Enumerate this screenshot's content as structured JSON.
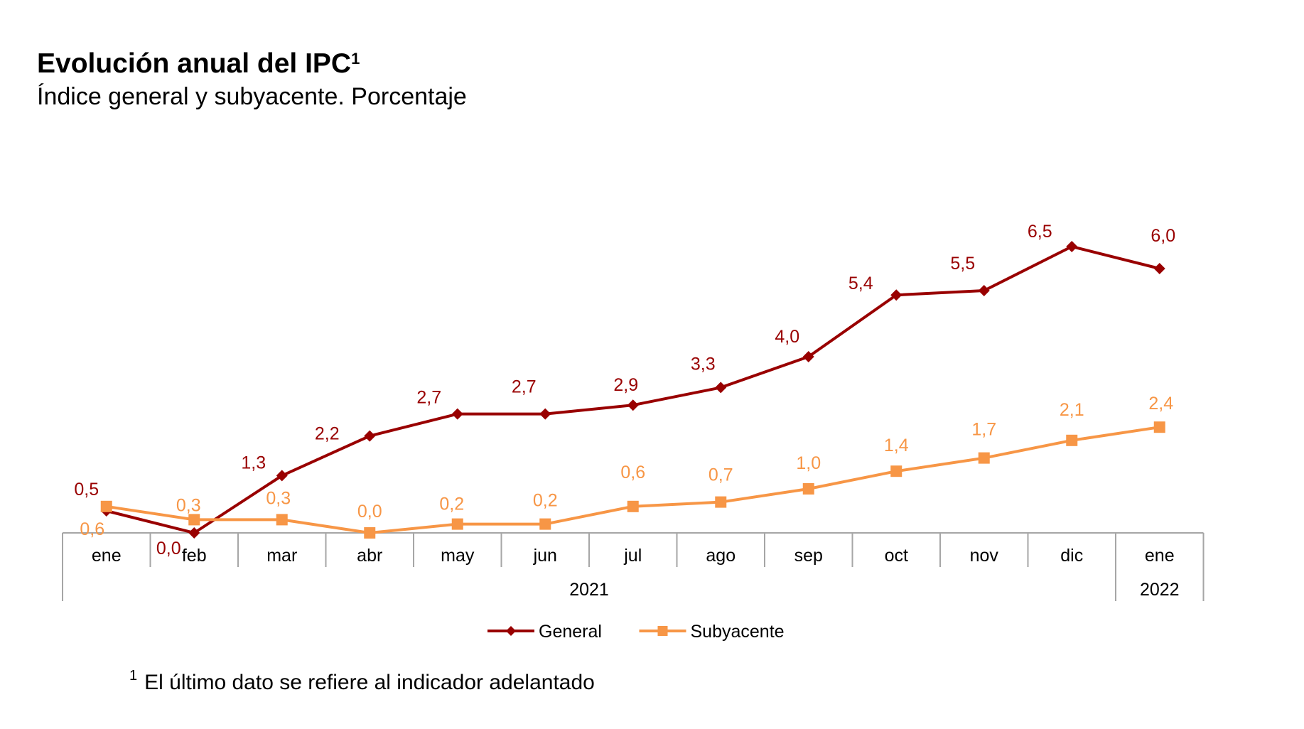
{
  "header": {
    "title": "Evolución anual del IPC",
    "title_sup": "1",
    "subtitle": "Índice general y subyacente. Porcentaje"
  },
  "footnote": {
    "marker": "1",
    "text": "El último dato se refiere al indicador adelantado"
  },
  "chart_data": {
    "type": "line",
    "categories": [
      "ene",
      "feb",
      "mar",
      "abr",
      "may",
      "jun",
      "jul",
      "ago",
      "sep",
      "oct",
      "nov",
      "dic",
      "ene"
    ],
    "years": [
      {
        "label": "2021",
        "from": 0,
        "to": 11
      },
      {
        "label": "2022",
        "from": 12,
        "to": 12
      }
    ],
    "series": [
      {
        "name": "General",
        "color": "#990000",
        "marker": "diamond",
        "values": [
          0.5,
          0.0,
          1.3,
          2.2,
          2.7,
          2.7,
          2.9,
          3.3,
          4.0,
          5.4,
          5.5,
          6.5,
          6.0
        ],
        "labels": [
          "0,5",
          "0,0",
          "1,3",
          "2,2",
          "2,7",
          "2,7",
          "2,9",
          "3,3",
          "4,0",
          "5,4",
          "5,5",
          "6,5",
          "6,0"
        ]
      },
      {
        "name": "Subyacente",
        "color": "#f79646",
        "marker": "square",
        "values": [
          0.6,
          0.3,
          0.3,
          0.0,
          0.2,
          0.2,
          0.6,
          0.7,
          1.0,
          1.4,
          1.7,
          2.1,
          2.4
        ],
        "labels": [
          "0,6",
          "0,3",
          "0,3",
          "0,0",
          "0,2",
          "0,2",
          "0,6",
          "0,7",
          "1,0",
          "1,4",
          "1,7",
          "2,1",
          "2,4"
        ]
      }
    ],
    "ylim": [
      0,
      7
    ],
    "grid": false,
    "legend": "bottom"
  }
}
